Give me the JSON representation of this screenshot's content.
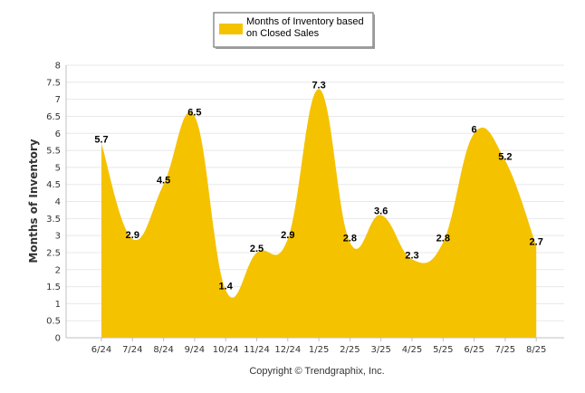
{
  "chart_data": {
    "type": "area",
    "title": "",
    "ylabel": "Months of Inventory",
    "xlabel": "",
    "categories": [
      "6/24",
      "7/24",
      "8/24",
      "9/24",
      "10/24",
      "11/24",
      "12/24",
      "1/25",
      "2/25",
      "3/25",
      "4/25",
      "5/25",
      "6/25",
      "7/25",
      "8/25"
    ],
    "series": [
      {
        "name": "Months of Inventory based on Closed Sales",
        "values": [
          5.7,
          2.9,
          4.5,
          6.5,
          1.4,
          2.5,
          2.9,
          7.3,
          2.8,
          3.6,
          2.3,
          2.8,
          6,
          5.2,
          2.7
        ],
        "labels": [
          "5.7",
          "2.9",
          "4.5",
          "6.5",
          "1.4",
          "2.5",
          "2.9",
          "7.3",
          "2.8",
          "3.6",
          "2.3",
          "2.8",
          "6",
          "5.2",
          "2.7"
        ],
        "color": "#F5C200"
      }
    ],
    "ylim": [
      0,
      8
    ],
    "yticks": [
      "0",
      "0.5",
      "1",
      "1.5",
      "2",
      "2.5",
      "3",
      "3.5",
      "4",
      "4.5",
      "5",
      "5.5",
      "6",
      "6.5",
      "7",
      "7.5",
      "8"
    ],
    "grid": true,
    "legend_position": "top-center",
    "legend_lines": [
      "Months of Inventory based",
      "on Closed Sales"
    ]
  },
  "footer": {
    "copyright": "Copyright © Trendgraphix, Inc."
  },
  "colors": {
    "fill": "#F5C200",
    "grid": "#E8E8E8",
    "axis": "#C0C0C0"
  }
}
